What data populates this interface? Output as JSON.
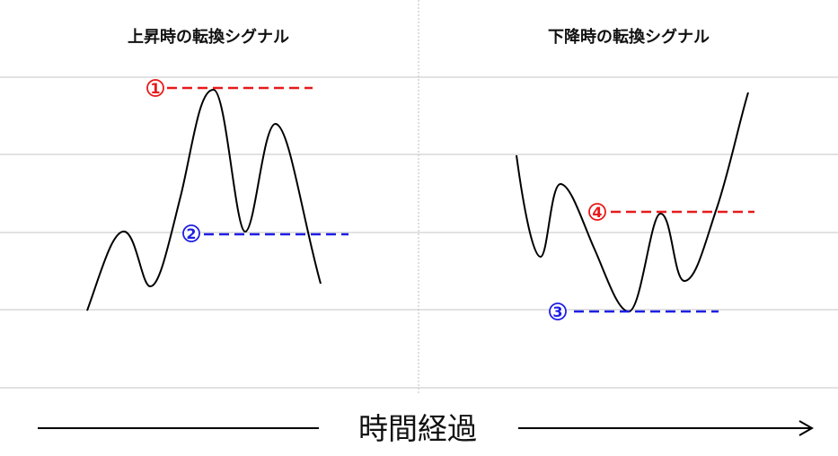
{
  "panels": {
    "left": {
      "title": "上昇時の転換シグナル"
    },
    "right": {
      "title": "下降時の転換シグナル"
    }
  },
  "markers": [
    {
      "id": "1",
      "label": "1",
      "panel": "left",
      "line": "red",
      "meaning": "peak"
    },
    {
      "id": "2",
      "label": "2",
      "panel": "left",
      "line": "blue",
      "meaning": "neckline"
    },
    {
      "id": "3",
      "label": "3",
      "panel": "right",
      "line": "blue",
      "meaning": "trough"
    },
    {
      "id": "4",
      "label": "4",
      "panel": "right",
      "line": "red",
      "meaning": "neckline"
    }
  ],
  "axis": {
    "label": "時間経過"
  },
  "colors": {
    "red": "#e8191a",
    "blue": "#1f1fe6",
    "grid": "#c4c4c4",
    "divider": "#bdbdbd",
    "curve": "#000000"
  }
}
